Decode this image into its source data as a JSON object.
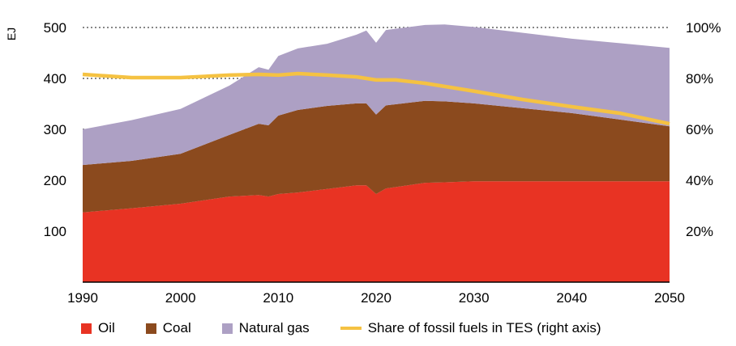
{
  "chart_data": {
    "type": "area",
    "stacked": true,
    "ylabel": "EJ",
    "ylim": [
      0,
      500
    ],
    "yticks": [
      "100",
      "200",
      "300",
      "400",
      "500"
    ],
    "y2lim": [
      0,
      100
    ],
    "y2ticks": [
      "20%",
      "40%",
      "60%",
      "80%",
      "100%"
    ],
    "xlim": [
      1990,
      2050
    ],
    "xticks": [
      "1990",
      "2000",
      "2010",
      "2020",
      "2030",
      "2040",
      "2050"
    ],
    "grid": "dotted horizontal",
    "legend": "bottom",
    "x": [
      1990,
      1995,
      2000,
      2005,
      2008,
      2009,
      2010,
      2012,
      2015,
      2018,
      2019,
      2020,
      2021,
      2025,
      2027,
      2030,
      2040,
      2050
    ],
    "series": [
      {
        "name": "Oil",
        "color": "#e83323",
        "values": [
          137,
          145,
          154,
          168,
          171,
          168,
          173,
          176,
          183,
          190,
          190,
          173,
          184,
          195,
          196,
          198,
          198,
          198
        ]
      },
      {
        "name": "Coal",
        "color": "#8b4a1e",
        "values": [
          93,
          93,
          98,
          121,
          140,
          140,
          154,
          162,
          163,
          161,
          161,
          156,
          163,
          161,
          159,
          153,
          134,
          108
        ]
      },
      {
        "name": "Natural gas",
        "color": "#ada0c4",
        "values": [
          70,
          80,
          88,
          97,
          111,
          109,
          117,
          121,
          122,
          135,
          143,
          141,
          148,
          149,
          151,
          150,
          146,
          154
        ]
      }
    ],
    "line": {
      "name": "Share of fossil fuels in TES (right axis)",
      "color": "#f5c242",
      "axis": "right",
      "x": [
        1990,
        1995,
        2000,
        2005,
        2008,
        2010,
        2012,
        2015,
        2018,
        2020,
        2022,
        2025,
        2030,
        2035,
        2040,
        2045,
        2050
      ],
      "values": [
        81.6,
        80.3,
        80.3,
        81.3,
        81.6,
        81.3,
        81.9,
        81.3,
        80.6,
        79.4,
        79.4,
        78.1,
        75,
        71.7,
        68.9,
        66.3,
        62.2
      ]
    }
  }
}
